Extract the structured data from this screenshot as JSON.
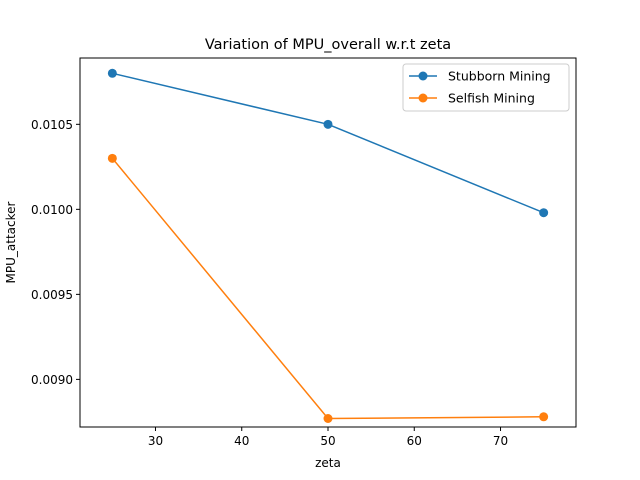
{
  "chart_data": {
    "type": "line",
    "title": "Variation of MPU_overall w.r.t zeta",
    "xlabel": "zeta",
    "ylabel": "MPU_attacker",
    "x": [
      25,
      50,
      75
    ],
    "xlim": [
      21.25,
      78.75
    ],
    "ylim": [
      0.00872,
      0.01089
    ],
    "xticks": [
      30,
      40,
      50,
      60,
      70
    ],
    "xtick_labels": [
      "30",
      "40",
      "50",
      "60",
      "70"
    ],
    "yticks": [
      0.009,
      0.0095,
      0.01,
      0.0105
    ],
    "ytick_labels": [
      "0.0090",
      "0.0095",
      "0.0100",
      "0.0105"
    ],
    "grid": false,
    "legend_position": "top-right",
    "series": [
      {
        "name": "Stubborn Mining",
        "color": "#1f77b4",
        "values": [
          0.0108,
          0.0105,
          0.00998
        ]
      },
      {
        "name": "Selfish Mining",
        "color": "#ff7f0e",
        "values": [
          0.0103,
          0.00877,
          0.00878
        ]
      }
    ]
  }
}
